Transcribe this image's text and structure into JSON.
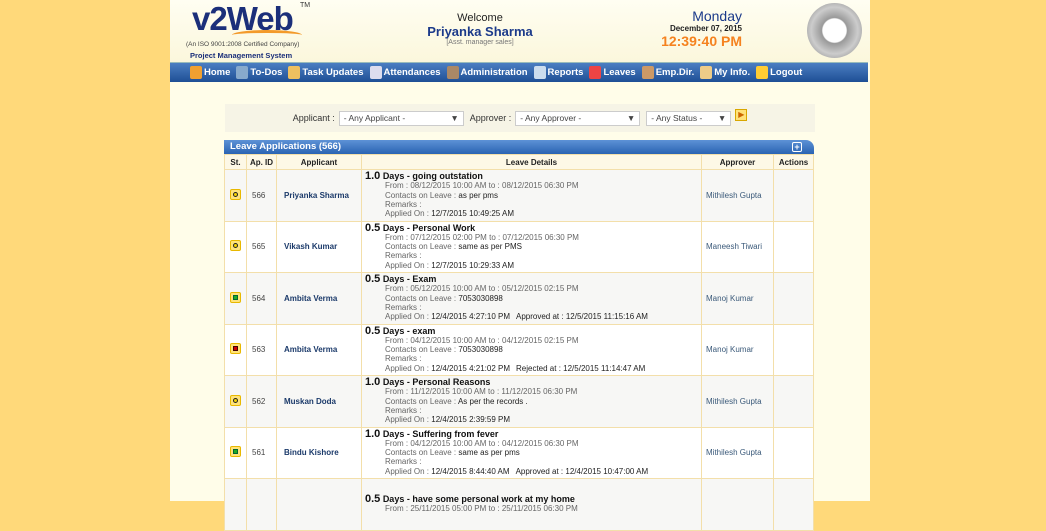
{
  "header": {
    "logo": "v2Web",
    "tm": "TM",
    "iso": "(An ISO 9001:2008 Certified Company)",
    "subtitle": "Project Management System",
    "welcome": "Welcome",
    "user": "Priyanka Sharma",
    "role": "[Asst. manager sales]",
    "day": "Monday",
    "date": "December 07, 2015",
    "time": "12:39:40 PM"
  },
  "nav": [
    {
      "label": "Home",
      "icon": "home-icon",
      "color": "#f0a030"
    },
    {
      "label": "To-Dos",
      "icon": "todo-icon",
      "color": "#8ac"
    },
    {
      "label": "Task Updates",
      "icon": "task-icon",
      "color": "#eec060"
    },
    {
      "label": "Attendances",
      "icon": "calendar-icon",
      "color": "#dde"
    },
    {
      "label": "Administration",
      "icon": "admin-user-icon",
      "color": "#a86"
    },
    {
      "label": "Reports",
      "icon": "report-icon",
      "color": "#cde"
    },
    {
      "label": "Leaves",
      "icon": "leave-calendar-icon",
      "color": "#e44"
    },
    {
      "label": "Emp.Dir.",
      "icon": "directory-icon",
      "color": "#c96"
    },
    {
      "label": "My Info.",
      "icon": "user-info-icon",
      "color": "#ec8"
    },
    {
      "label": "Logout",
      "icon": "lock-icon",
      "color": "#fc3"
    }
  ],
  "filters": {
    "applicant_label": "Applicant :",
    "applicant_value": "- Any Applicant -",
    "approver_label": "Approver :",
    "approver_value": "- Any Approver -",
    "status_value": "- Any Status -"
  },
  "table": {
    "title": "Leave Applications (566)",
    "columns": [
      "St.",
      "Ap. ID",
      "Applicant",
      "Leave Details",
      "Approver",
      "Actions"
    ],
    "labels": {
      "days": "Days",
      "from": "From :",
      "to": "to :",
      "contacts": "Contacts on Leave :",
      "remarks": "Remarks :",
      "applied": "Applied On :",
      "approved": "Approved at :",
      "rejected": "Rejected at :"
    },
    "rows": [
      {
        "status": "pending",
        "id": "566",
        "applicant": "Priyanka Sharma",
        "days": "1.0",
        "reason": "going outstation",
        "from": "08/12/2015 10:00 AM",
        "to": "08/12/2015 06:30 PM",
        "contacts": "as per pms",
        "applied": "12/7/2015 10:49:25 AM",
        "decision": "",
        "approver": "Mithilesh Gupta"
      },
      {
        "status": "pending",
        "id": "565",
        "applicant": "Vikash Kumar",
        "days": "0.5",
        "reason": "Personal Work",
        "from": "07/12/2015 02:00 PM",
        "to": "07/12/2015 06:30 PM",
        "contacts": "same as per PMS",
        "applied": "12/7/2015 10:29:33 AM",
        "decision": "",
        "approver": "Maneesh Tiwari"
      },
      {
        "status": "approved",
        "id": "564",
        "applicant": "Ambita Verma",
        "days": "0.5",
        "reason": "Exam",
        "from": "05/12/2015 10:00 AM",
        "to": "05/12/2015 02:15 PM",
        "contacts": "7053030898",
        "applied": "12/4/2015 4:27:10 PM",
        "decision": "12/5/2015 11:15:16 AM",
        "approver": "Manoj Kumar"
      },
      {
        "status": "rejected",
        "id": "563",
        "applicant": "Ambita Verma",
        "days": "0.5",
        "reason": "exam",
        "from": "04/12/2015 10:00 AM",
        "to": "04/12/2015 02:15 PM",
        "contacts": "7053030898",
        "applied": "12/4/2015 4:21:02 PM",
        "decision": "12/5/2015 11:14:47 AM",
        "approver": "Manoj Kumar"
      },
      {
        "status": "pending",
        "id": "562",
        "applicant": "Muskan Doda",
        "days": "1.0",
        "reason": "Personal Reasons",
        "from": "11/12/2015 10:00 AM",
        "to": "11/12/2015 06:30 PM",
        "contacts": "As per the records .",
        "applied": "12/4/2015 2:39:59 PM",
        "decision": "",
        "approver": "Mithilesh Gupta"
      },
      {
        "status": "approved",
        "id": "561",
        "applicant": "Bindu Kishore",
        "days": "1.0",
        "reason": "Suffering from fever",
        "from": "04/12/2015 10:00 AM",
        "to": "04/12/2015 06:30 PM",
        "contacts": "same as per pms",
        "applied": "12/4/2015 8:44:40 AM",
        "decision": "12/4/2015 10:47:00 AM",
        "approver": "Mithilesh Gupta"
      },
      {
        "status": "",
        "id": "",
        "applicant": "",
        "days": "0.5",
        "reason": "have some personal work at my home",
        "from": "25/11/2015 05:00 PM",
        "to": "25/11/2015 06:30 PM",
        "contacts": "",
        "applied": "",
        "decision": "",
        "approver": ""
      }
    ]
  }
}
